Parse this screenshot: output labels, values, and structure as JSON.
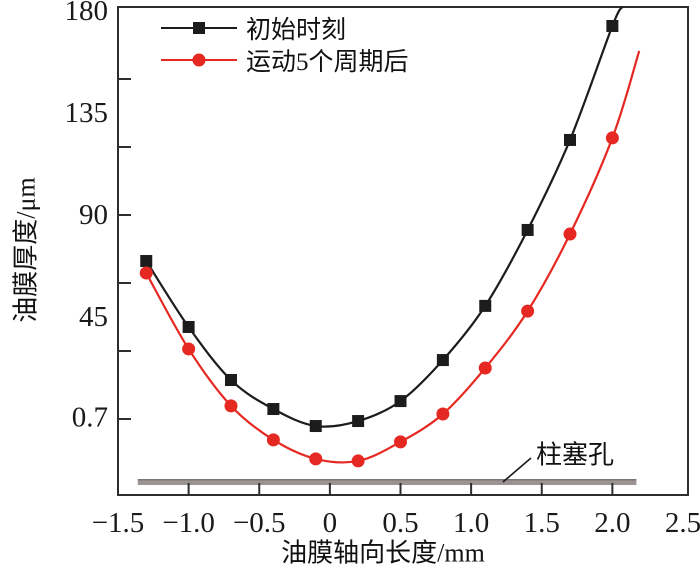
{
  "figure": {
    "y_axis_title": "油膜厚度/μm",
    "x_axis_title": "油膜轴向长度/mm",
    "annotation_label": "柱塞孔",
    "legend": {
      "items": [
        {
          "label": "初始时刻",
          "marker": "square",
          "color": "#1c1c1c"
        },
        {
          "label": "运动5个周期后",
          "marker": "circle",
          "color": "#e62822"
        }
      ]
    }
  },
  "chart_data": {
    "type": "line",
    "title": "",
    "xlabel": "油膜轴向长度/mm",
    "ylabel": "油膜厚度/μm",
    "x": [
      -1.3,
      -1.0,
      -0.7,
      -0.4,
      -0.1,
      0.2,
      0.5,
      0.8,
      1.1,
      1.4,
      1.7,
      2.0
    ],
    "series": [
      {
        "name": "初始时刻",
        "color": "#1c1c1c",
        "marker": "square",
        "values": [
          69.7,
          40.6,
          17.2,
          4.4,
          -3.1,
          -0.9,
          7.9,
          26.0,
          49.9,
          83.4,
          123.1,
          173.4
        ],
        "tail": {
          "x": 2.07,
          "y": 181.8
        }
      },
      {
        "name": "运动5个周期后",
        "color": "#e62822",
        "marker": "circle",
        "values": [
          64.4,
          30.9,
          5.8,
          -9.2,
          -17.6,
          -18.5,
          -10.1,
          2.2,
          22.5,
          47.6,
          81.6,
          124.0
        ],
        "tail": {
          "x": 2.19,
          "y": 162.4
        }
      }
    ],
    "x_tick_labels": [
      "−1.5",
      "−1.0",
      "−0.5",
      "0",
      "0.5",
      "1.0",
      "1.5",
      "2.0",
      "2.5"
    ],
    "x_tick_values": [
      -1.5,
      -1.0,
      -0.5,
      0,
      0.5,
      1.0,
      1.5,
      2.0,
      2.5
    ],
    "x_tick_mark_values": [
      -1.0,
      -0.5,
      0,
      0.5,
      1.0,
      1.5,
      2.0
    ],
    "y_tick_labels": [
      "180",
      "135",
      "90",
      "45",
      "0.7"
    ],
    "y_label_values": [
      180,
      135,
      90,
      45,
      0.7
    ],
    "y_tick_mark_values": [
      150,
      120,
      90,
      60,
      30,
      0
    ],
    "xlim": [
      -1.5,
      2.5
    ],
    "ylim": [
      -33,
      183
    ],
    "grid": false,
    "legend_position": "top-left-inside",
    "plunger_bar": {
      "label": "柱塞孔",
      "x_start": -1.36,
      "x_end": 2.17,
      "color": "#9c9492"
    }
  }
}
